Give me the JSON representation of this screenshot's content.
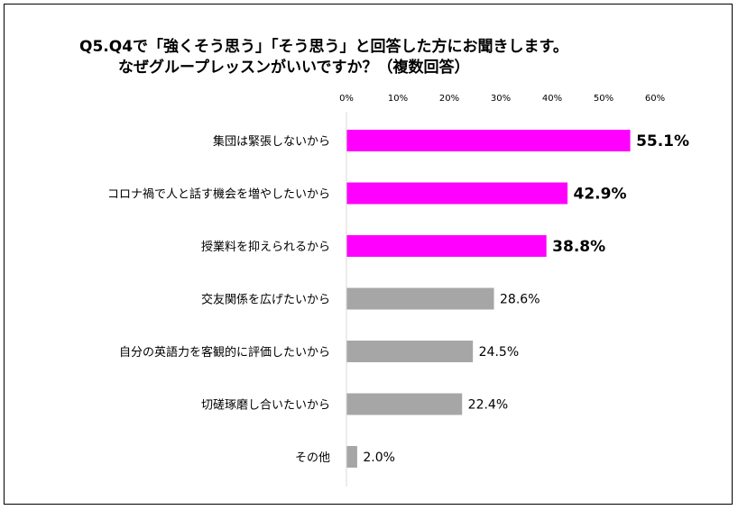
{
  "title": {
    "line1": "Q5.Q4で「強くそう思う」「そう思う」と回答した方にお聞きします。",
    "line2": "なぜグループレッスンがいいですか？（複数回答）"
  },
  "colors": {
    "highlight": "#ff00ff",
    "normal": "#a6a6a6",
    "axis": "#d9d9d9"
  },
  "chart_data": {
    "type": "bar",
    "orientation": "horizontal",
    "title": "Q5.Q4で「強くそう思う」「そう思う」と回答した方にお聞きします。なぜグループレッスンがいいですか？（複数回答）",
    "categories": [
      "集団は緊張しないから",
      "コロナ禍で人と話す機会を増やしたいから",
      "授業料を抑えられるから",
      "交友関係を広げたいから",
      "自分の英語力を客観的に評価したいから",
      "切磋琢磨し合いたいから",
      "その他"
    ],
    "values": [
      55.1,
      42.9,
      38.8,
      28.6,
      24.5,
      22.4,
      2.0
    ],
    "value_labels": [
      "55.1%",
      "42.9%",
      "38.8%",
      "28.6%",
      "24.5%",
      "22.4%",
      "2.0%"
    ],
    "highlighted": [
      true,
      true,
      true,
      false,
      false,
      false,
      false
    ],
    "xlim": [
      0,
      60
    ],
    "xticks": [
      0,
      10,
      20,
      30,
      40,
      50,
      60
    ],
    "xtick_labels": [
      "0%",
      "10%",
      "20%",
      "30%",
      "40%",
      "50%",
      "60%"
    ],
    "xaxis_position": "top",
    "grid": false,
    "legend": "none"
  }
}
